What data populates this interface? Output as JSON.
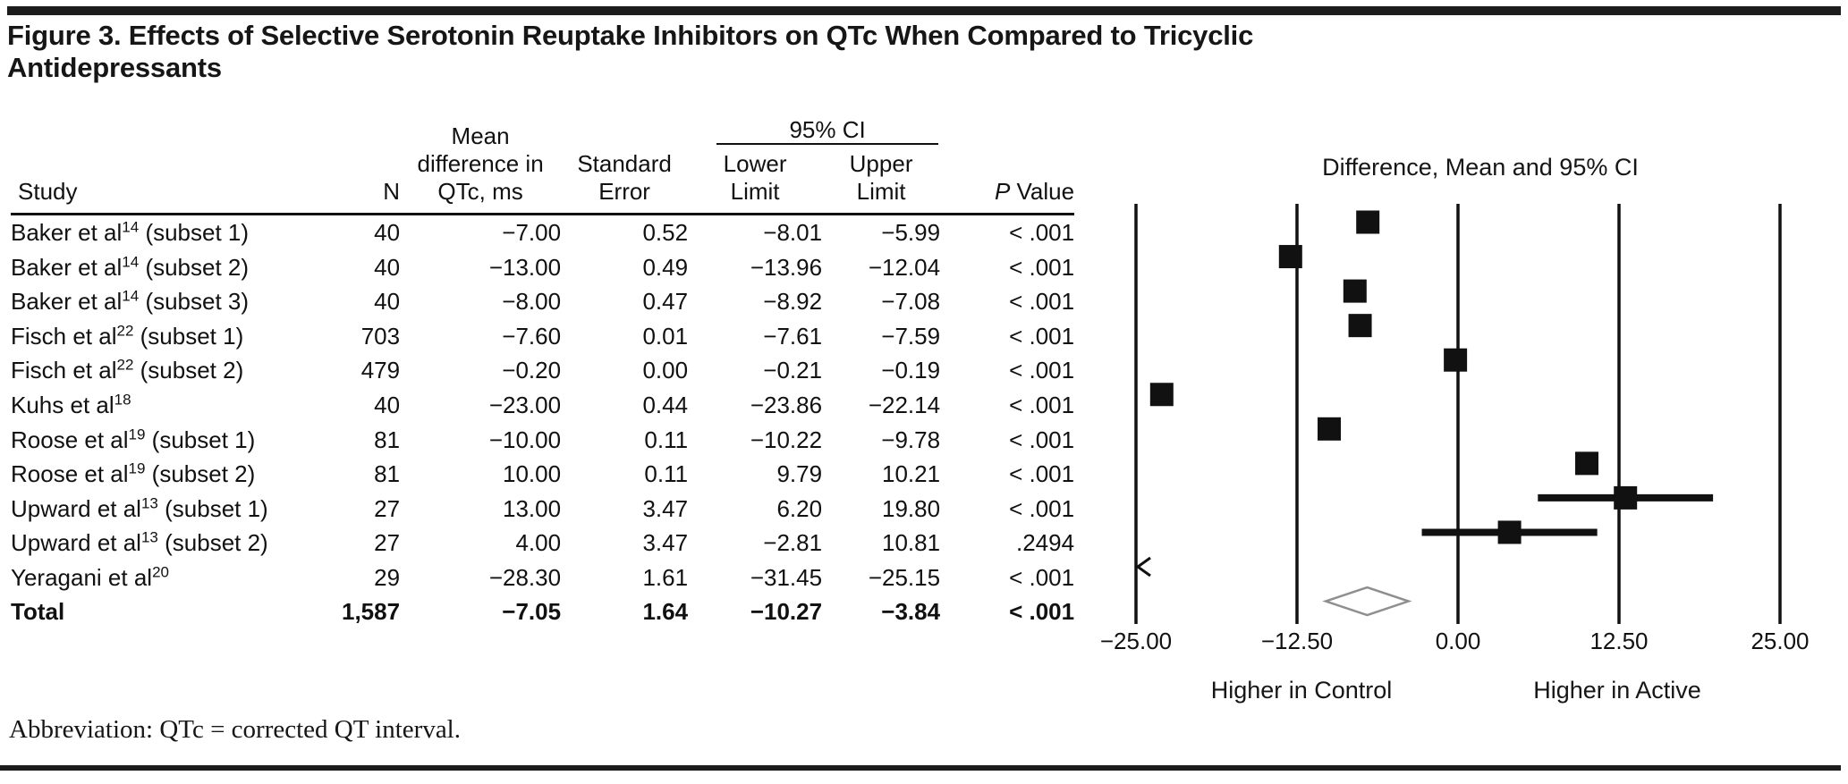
{
  "figure": {
    "title": "Figure 3. Effects of Selective Serotonin Reuptake Inhibitors on QTc When Compared to Tricyclic Antidepressants",
    "abbreviation_note": "Abbreviation: QTc = corrected QT interval."
  },
  "table": {
    "headers": {
      "study": "Study",
      "n": "N",
      "mean_diff": "Mean\ndifference in\nQTc, ms",
      "standard_error": "Standard\nError",
      "ci_group": "95% CI",
      "lower": "Lower\nLimit",
      "upper": "Upper\nLimit",
      "p_italic": "P",
      "p_rest": " Value"
    },
    "rows": [
      {
        "study": "Baker et al",
        "ref": "14",
        "subset": " (subset 1)",
        "n": "40",
        "mean": "−7.00",
        "se": "0.52",
        "lower": "−8.01",
        "upper": "−5.99",
        "p": "< .001",
        "bold": false
      },
      {
        "study": "Baker et al",
        "ref": "14",
        "subset": " (subset 2)",
        "n": "40",
        "mean": "−13.00",
        "se": "0.49",
        "lower": "−13.96",
        "upper": "−12.04",
        "p": "< .001",
        "bold": false
      },
      {
        "study": "Baker et al",
        "ref": "14",
        "subset": " (subset 3)",
        "n": "40",
        "mean": "−8.00",
        "se": "0.47",
        "lower": "−8.92",
        "upper": "−7.08",
        "p": "< .001",
        "bold": false
      },
      {
        "study": "Fisch et al",
        "ref": "22",
        "subset": " (subset 1)",
        "n": "703",
        "mean": "−7.60",
        "se": "0.01",
        "lower": "−7.61",
        "upper": "−7.59",
        "p": "< .001",
        "bold": false
      },
      {
        "study": "Fisch et al",
        "ref": "22",
        "subset": " (subset 2)",
        "n": "479",
        "mean": "−0.20",
        "se": "0.00",
        "lower": "−0.21",
        "upper": "−0.19",
        "p": "< .001",
        "bold": false
      },
      {
        "study": "Kuhs et al",
        "ref": "18",
        "subset": "",
        "n": "40",
        "mean": "−23.00",
        "se": "0.44",
        "lower": "−23.86",
        "upper": "−22.14",
        "p": "< .001",
        "bold": false
      },
      {
        "study": "Roose et al",
        "ref": "19",
        "subset": " (subset 1)",
        "n": "81",
        "mean": "−10.00",
        "se": "0.11",
        "lower": "−10.22",
        "upper": "−9.78",
        "p": "< .001",
        "bold": false
      },
      {
        "study": "Roose et al",
        "ref": "19",
        "subset": " (subset 2)",
        "n": "81",
        "mean": "10.00",
        "se": "0.11",
        "lower": "9.79",
        "upper": "10.21",
        "p": "< .001",
        "bold": false
      },
      {
        "study": "Upward et al",
        "ref": "13",
        "subset": " (subset 1)",
        "n": "27",
        "mean": "13.00",
        "se": "3.47",
        "lower": "6.20",
        "upper": "19.80",
        "p": "< .001",
        "bold": false
      },
      {
        "study": "Upward et al",
        "ref": "13",
        "subset": " (subset 2)",
        "n": "27",
        "mean": "4.00",
        "se": "3.47",
        "lower": "−2.81",
        "upper": "10.81",
        "p": ".2494",
        "bold": false
      },
      {
        "study": "Yeragani et al",
        "ref": "20",
        "subset": "",
        "n": "29",
        "mean": "−28.30",
        "se": "1.61",
        "lower": "−31.45",
        "upper": "−25.15",
        "p": "< .001",
        "bold": false
      },
      {
        "study": "Total",
        "ref": "",
        "subset": "",
        "n": "1,587",
        "mean": "−7.05",
        "se": "1.64",
        "lower": "−10.27",
        "upper": "−3.84",
        "p": "< .001",
        "bold": true
      }
    ]
  },
  "chart_data": {
    "type": "forest",
    "title": "Difference, Mean and 95% CI",
    "xlabel": "Mean difference in QTc, ms",
    "xlim": [
      -25,
      25
    ],
    "x_ticks": [
      {
        "value": -25,
        "label": "−25.00"
      },
      {
        "value": -12.5,
        "label": "−12.50"
      },
      {
        "value": 0,
        "label": "0.00"
      },
      {
        "value": 12.5,
        "label": "12.50"
      },
      {
        "value": 25,
        "label": "25.00"
      }
    ],
    "direction_labels": {
      "left": "Higher in Control",
      "right": "Higher in Active"
    },
    "colors": {
      "marker": "#111111",
      "gridline": "#111111",
      "diamond_outline": "#8f8f8f"
    },
    "rows": [
      {
        "study": "Baker et al 14 (subset 1)",
        "mean": -7.0,
        "lower": -8.01,
        "upper": -5.99,
        "marker": "square",
        "ci_line": false
      },
      {
        "study": "Baker et al 14 (subset 2)",
        "mean": -13.0,
        "lower": -13.96,
        "upper": -12.04,
        "marker": "square",
        "ci_line": false
      },
      {
        "study": "Baker et al 14 (subset 3)",
        "mean": -8.0,
        "lower": -8.92,
        "upper": -7.08,
        "marker": "square",
        "ci_line": false
      },
      {
        "study": "Fisch et al 22 (subset 1)",
        "mean": -7.6,
        "lower": -7.61,
        "upper": -7.59,
        "marker": "square",
        "ci_line": false
      },
      {
        "study": "Fisch et al 22 (subset 2)",
        "mean": -0.2,
        "lower": -0.21,
        "upper": -0.19,
        "marker": "square",
        "ci_line": false
      },
      {
        "study": "Kuhs et al 18",
        "mean": -23.0,
        "lower": -23.86,
        "upper": -22.14,
        "marker": "square",
        "ci_line": false
      },
      {
        "study": "Roose et al 19 (subset 1)",
        "mean": -10.0,
        "lower": -10.22,
        "upper": -9.78,
        "marker": "square",
        "ci_line": false
      },
      {
        "study": "Roose et al 19 (subset 2)",
        "mean": 10.0,
        "lower": 9.79,
        "upper": 10.21,
        "marker": "square",
        "ci_line": false
      },
      {
        "study": "Upward et al 13 (subset 1)",
        "mean": 13.0,
        "lower": 6.2,
        "upper": 19.8,
        "marker": "square",
        "ci_line": true
      },
      {
        "study": "Upward et al 13 (subset 2)",
        "mean": 4.0,
        "lower": -2.81,
        "upper": 10.81,
        "marker": "square",
        "ci_line": true
      },
      {
        "study": "Yeragani et al 20",
        "mean": -28.3,
        "lower": -31.45,
        "upper": -25.15,
        "marker": "arrow-left",
        "ci_line": false
      },
      {
        "study": "Total",
        "mean": -7.05,
        "lower": -10.27,
        "upper": -3.84,
        "marker": "diamond",
        "ci_line": false
      }
    ]
  }
}
